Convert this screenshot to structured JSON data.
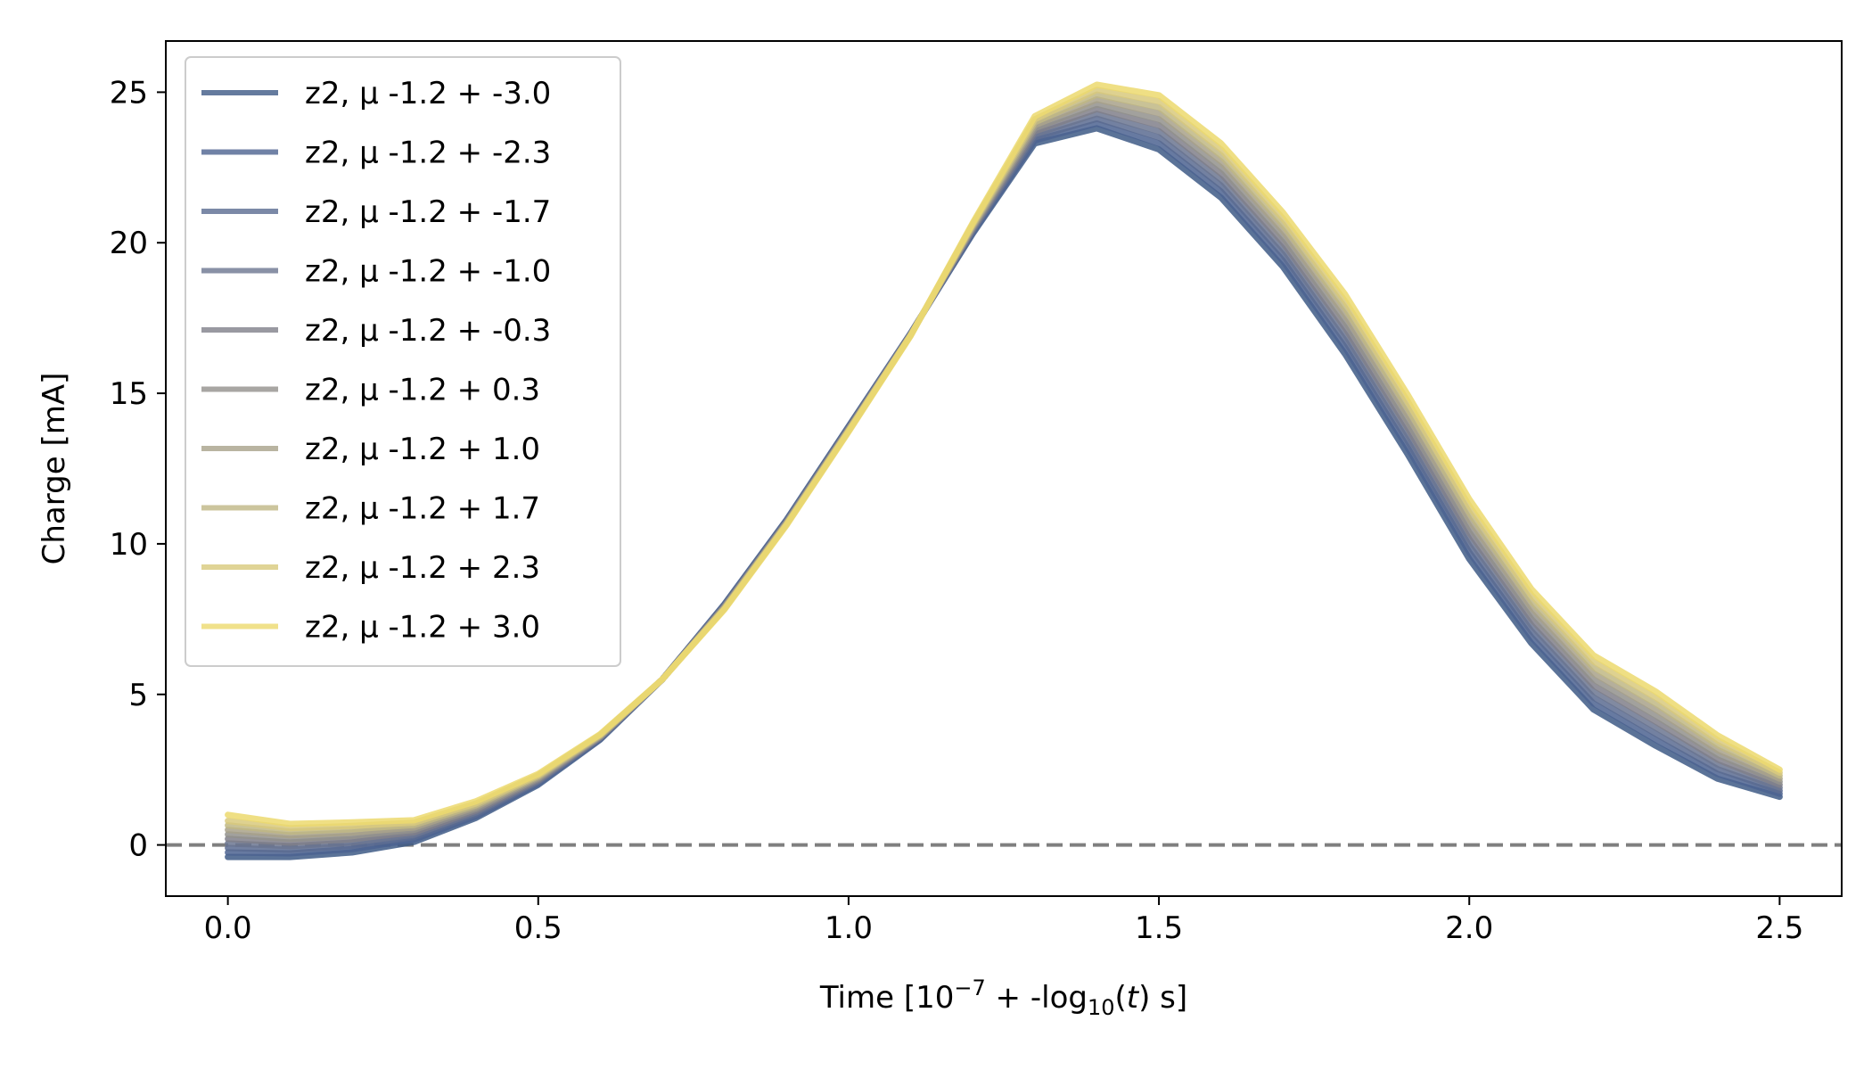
{
  "chart_data": {
    "type": "line",
    "title": "",
    "xlabel": {
      "pre": "Time [10",
      "sup": "−7",
      "mid": " + -log",
      "sub": "10",
      "open": "(",
      "ital": "t",
      "post": ") s]"
    },
    "ylabel": "Charge [mA]",
    "xlim": [
      -0.1,
      2.6
    ],
    "ylim": [
      -1.7,
      26.7
    ],
    "xticks": [
      0.0,
      0.5,
      1.0,
      1.5,
      2.0,
      2.5
    ],
    "xtick_labels": [
      "0.0",
      "0.5",
      "1.0",
      "1.5",
      "2.0",
      "2.5"
    ],
    "yticks": [
      0,
      5,
      10,
      15,
      20,
      25
    ],
    "ytick_labels": [
      "0",
      "5",
      "10",
      "15",
      "20",
      "25"
    ],
    "grid": false,
    "legend_position": "upper-left",
    "reference_line": {
      "y": 0,
      "style": "dashed",
      "color": "#7f7f7f"
    },
    "x": [
      0.0,
      0.1,
      0.2,
      0.3,
      0.4,
      0.5,
      0.6,
      0.7,
      0.8,
      0.9,
      1.0,
      1.1,
      1.2,
      1.3,
      1.4,
      1.5,
      1.6,
      1.7,
      1.8,
      1.9,
      2.0,
      2.1,
      2.2,
      2.3,
      2.4,
      2.5
    ],
    "series": [
      {
        "name": "z2, μ -1.2 + -3.0",
        "color": "#3e5a86",
        "values": [
          -0.4,
          -0.4,
          -0.25,
          0.1,
          0.9,
          2.0,
          3.5,
          5.5,
          8.0,
          10.8,
          13.9,
          17.0,
          20.3,
          23.3,
          23.8,
          23.1,
          21.5,
          19.2,
          16.3,
          13.0,
          9.5,
          6.7,
          4.5,
          3.3,
          2.2,
          1.6
        ]
      },
      {
        "name": "z2, μ -1.2 + -2.3",
        "color": "#4c6390",
        "values": [
          -0.25,
          -0.28,
          -0.14,
          0.18,
          0.96,
          2.04,
          3.52,
          5.5,
          7.98,
          10.78,
          13.88,
          16.99,
          20.34,
          23.4,
          23.96,
          23.3,
          21.7,
          19.4,
          16.52,
          13.22,
          9.72,
          6.9,
          4.7,
          3.5,
          2.36,
          1.7
        ]
      },
      {
        "name": "z2, μ -1.2 + -1.7",
        "color": "#5a6b91",
        "values": [
          -0.1,
          -0.16,
          -0.03,
          0.26,
          1.02,
          2.08,
          3.54,
          5.5,
          7.96,
          10.76,
          13.86,
          16.98,
          20.38,
          23.5,
          24.12,
          23.5,
          21.9,
          19.6,
          16.74,
          13.44,
          9.94,
          7.1,
          4.9,
          3.7,
          2.52,
          1.8
        ]
      },
      {
        "name": "z2, μ -1.2 + -1.0",
        "color": "#6b7590",
        "values": [
          0.05,
          -0.04,
          0.08,
          0.34,
          1.08,
          2.12,
          3.56,
          5.5,
          7.94,
          10.74,
          13.84,
          16.97,
          20.42,
          23.6,
          24.28,
          23.7,
          22.1,
          19.8,
          16.96,
          13.66,
          10.16,
          7.3,
          5.1,
          3.9,
          2.68,
          1.9
        ]
      },
      {
        "name": "z2, μ -1.2 + -0.3",
        "color": "#807f8a",
        "values": [
          0.2,
          0.08,
          0.19,
          0.42,
          1.14,
          2.16,
          3.58,
          5.5,
          7.92,
          10.72,
          13.82,
          16.96,
          20.46,
          23.7,
          24.44,
          23.9,
          22.3,
          20.0,
          17.18,
          13.88,
          10.38,
          7.5,
          5.3,
          4.1,
          2.84,
          2.0
        ]
      },
      {
        "name": "z2, μ -1.2 + 0.3",
        "color": "#92908c",
        "values": [
          0.35,
          0.2,
          0.3,
          0.5,
          1.2,
          2.2,
          3.6,
          5.5,
          7.9,
          10.7,
          13.8,
          16.95,
          20.5,
          23.8,
          24.6,
          24.1,
          22.5,
          20.2,
          17.4,
          14.1,
          10.6,
          7.7,
          5.5,
          4.3,
          3.0,
          2.1
        ]
      },
      {
        "name": "z2, μ -1.2 + 1.0",
        "color": "#a8a18a",
        "values": [
          0.5,
          0.32,
          0.41,
          0.58,
          1.26,
          2.24,
          3.62,
          5.5,
          7.88,
          10.68,
          13.78,
          16.94,
          20.54,
          23.9,
          24.76,
          24.3,
          22.7,
          20.4,
          17.62,
          14.32,
          10.82,
          7.9,
          5.7,
          4.5,
          3.16,
          2.2
        ]
      },
      {
        "name": "z2, μ -1.2 + 1.7",
        "color": "#bfb784",
        "values": [
          0.65,
          0.44,
          0.52,
          0.66,
          1.32,
          2.28,
          3.64,
          5.5,
          7.86,
          10.66,
          13.76,
          16.93,
          20.58,
          24.0,
          24.92,
          24.5,
          22.9,
          20.6,
          17.84,
          14.54,
          11.04,
          8.1,
          5.9,
          4.7,
          3.32,
          2.3
        ]
      },
      {
        "name": "z2, μ -1.2 + 2.3",
        "color": "#d8c97c",
        "values": [
          0.8,
          0.56,
          0.63,
          0.74,
          1.38,
          2.32,
          3.66,
          5.5,
          7.84,
          10.64,
          13.74,
          16.92,
          20.62,
          24.1,
          25.08,
          24.7,
          23.1,
          20.8,
          18.06,
          14.76,
          11.26,
          8.3,
          6.1,
          4.9,
          3.48,
          2.4
        ]
      },
      {
        "name": "z2, μ -1.2 + 3.0",
        "color": "#ecd96e",
        "values": [
          1.0,
          0.7,
          0.75,
          0.82,
          1.45,
          2.36,
          3.68,
          5.5,
          7.82,
          10.62,
          13.72,
          16.91,
          20.66,
          24.2,
          25.25,
          24.9,
          23.3,
          21.0,
          18.28,
          14.98,
          11.48,
          8.5,
          6.3,
          5.1,
          3.64,
          2.5
        ]
      }
    ]
  }
}
